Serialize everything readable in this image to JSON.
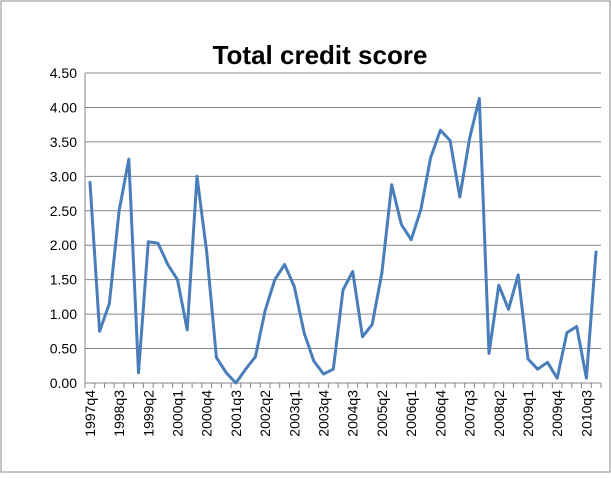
{
  "chart_data": {
    "type": "line",
    "title": "Total credit score",
    "categories": [
      "1997q4",
      null,
      null,
      "1998q3",
      null,
      null,
      "1999q2",
      null,
      null,
      "2000q1",
      null,
      null,
      "2000q4",
      null,
      null,
      "2001q3",
      null,
      null,
      "2002q2",
      null,
      null,
      "2003q1",
      null,
      null,
      "2003q4",
      null,
      null,
      "2004q3",
      null,
      null,
      "2005q2",
      null,
      null,
      "2006q1",
      null,
      null,
      "2006q4",
      null,
      null,
      "2007q3",
      null,
      null,
      "2008q2",
      null,
      null,
      "2009q1",
      null,
      null,
      "2009q4",
      null,
      null,
      "2010q3",
      null
    ],
    "values": [
      2.93,
      0.75,
      1.15,
      2.5,
      3.25,
      0.15,
      2.05,
      2.03,
      1.72,
      1.5,
      0.77,
      3.0,
      1.9,
      0.37,
      0.15,
      0.0,
      0.2,
      0.38,
      1.05,
      1.5,
      1.72,
      1.4,
      0.73,
      0.32,
      0.13,
      0.2,
      1.35,
      1.62,
      0.67,
      0.85,
      1.6,
      2.88,
      2.3,
      2.08,
      2.52,
      3.27,
      3.67,
      3.52,
      2.7,
      3.55,
      4.13,
      0.43,
      1.42,
      1.07,
      1.57,
      0.35,
      0.2,
      0.3,
      0.07,
      0.73,
      0.82,
      0.07,
      1.92
    ],
    "color": "#4a7ebb",
    "ylim": [
      0,
      4.5
    ],
    "yticks": [
      {
        "value": 0,
        "label": "0.00"
      },
      {
        "value": 0.5,
        "label": "0.50"
      },
      {
        "value": 1,
        "label": "1.00"
      },
      {
        "value": 1.5,
        "label": "1.50"
      },
      {
        "value": 2,
        "label": "2.00"
      },
      {
        "value": 2.5,
        "label": "2.50"
      },
      {
        "value": 3,
        "label": "3.00"
      },
      {
        "value": 3.5,
        "label": "3.50"
      },
      {
        "value": 4,
        "label": "4.00"
      },
      {
        "value": 4.5,
        "label": "4.50"
      }
    ],
    "grid": true
  }
}
